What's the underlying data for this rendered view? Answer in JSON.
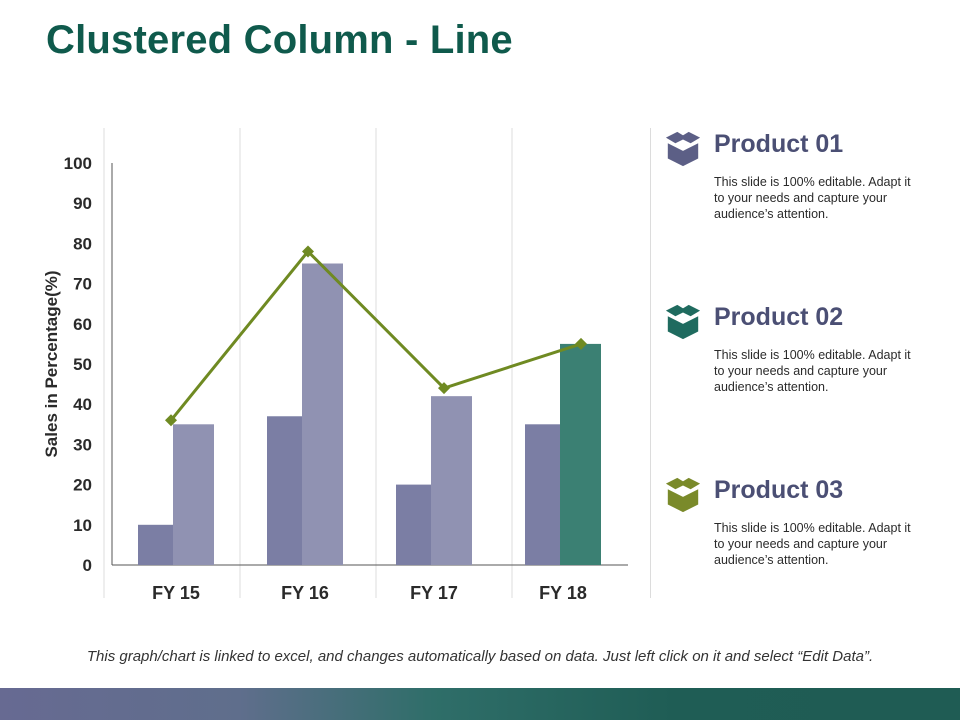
{
  "slide": {
    "title": "Clustered Column - Line",
    "footer_note": "This graph/chart is linked to excel, and changes automatically based on data. Just left click on it and select “Edit Data”."
  },
  "products": [
    {
      "name": "Product 01",
      "description": "This slide is 100% editable. Adapt it to your needs and capture your audience’s attention.",
      "icon": "box-icon",
      "color": "#5c5f86"
    },
    {
      "name": "Product 02",
      "description": "This slide is 100% editable. Adapt it to your needs and capture your audience’s attention.",
      "icon": "box-icon",
      "color": "#1f6b5f"
    },
    {
      "name": "Product 03",
      "description": "This slide is 100% editable. Adapt it to your needs and capture your audience’s attention.",
      "icon": "box-icon",
      "color": "#7a8a2a"
    }
  ],
  "chart_data": {
    "type": "bar",
    "categories": [
      "FY 15",
      "FY 16",
      "FY 17",
      "FY 18"
    ],
    "ylabel": "Sales in Percentage(%)",
    "ylim": [
      0,
      100
    ],
    "yticks": [
      0,
      10,
      20,
      30,
      40,
      50,
      60,
      70,
      80,
      90,
      100
    ],
    "series": [
      {
        "type": "bar",
        "values": [
          10,
          37,
          20,
          35
        ],
        "color": "#7b7ea4"
      },
      {
        "type": "bar",
        "values": [
          35,
          75,
          42,
          55
        ],
        "color": "#9092b2",
        "highlight_index": 3,
        "highlight_color": "#3b8073"
      },
      {
        "type": "line",
        "values": [
          36,
          78,
          44,
          55
        ],
        "color": "#6f8a22"
      }
    ],
    "grid": false,
    "axis_color": "#555555"
  }
}
